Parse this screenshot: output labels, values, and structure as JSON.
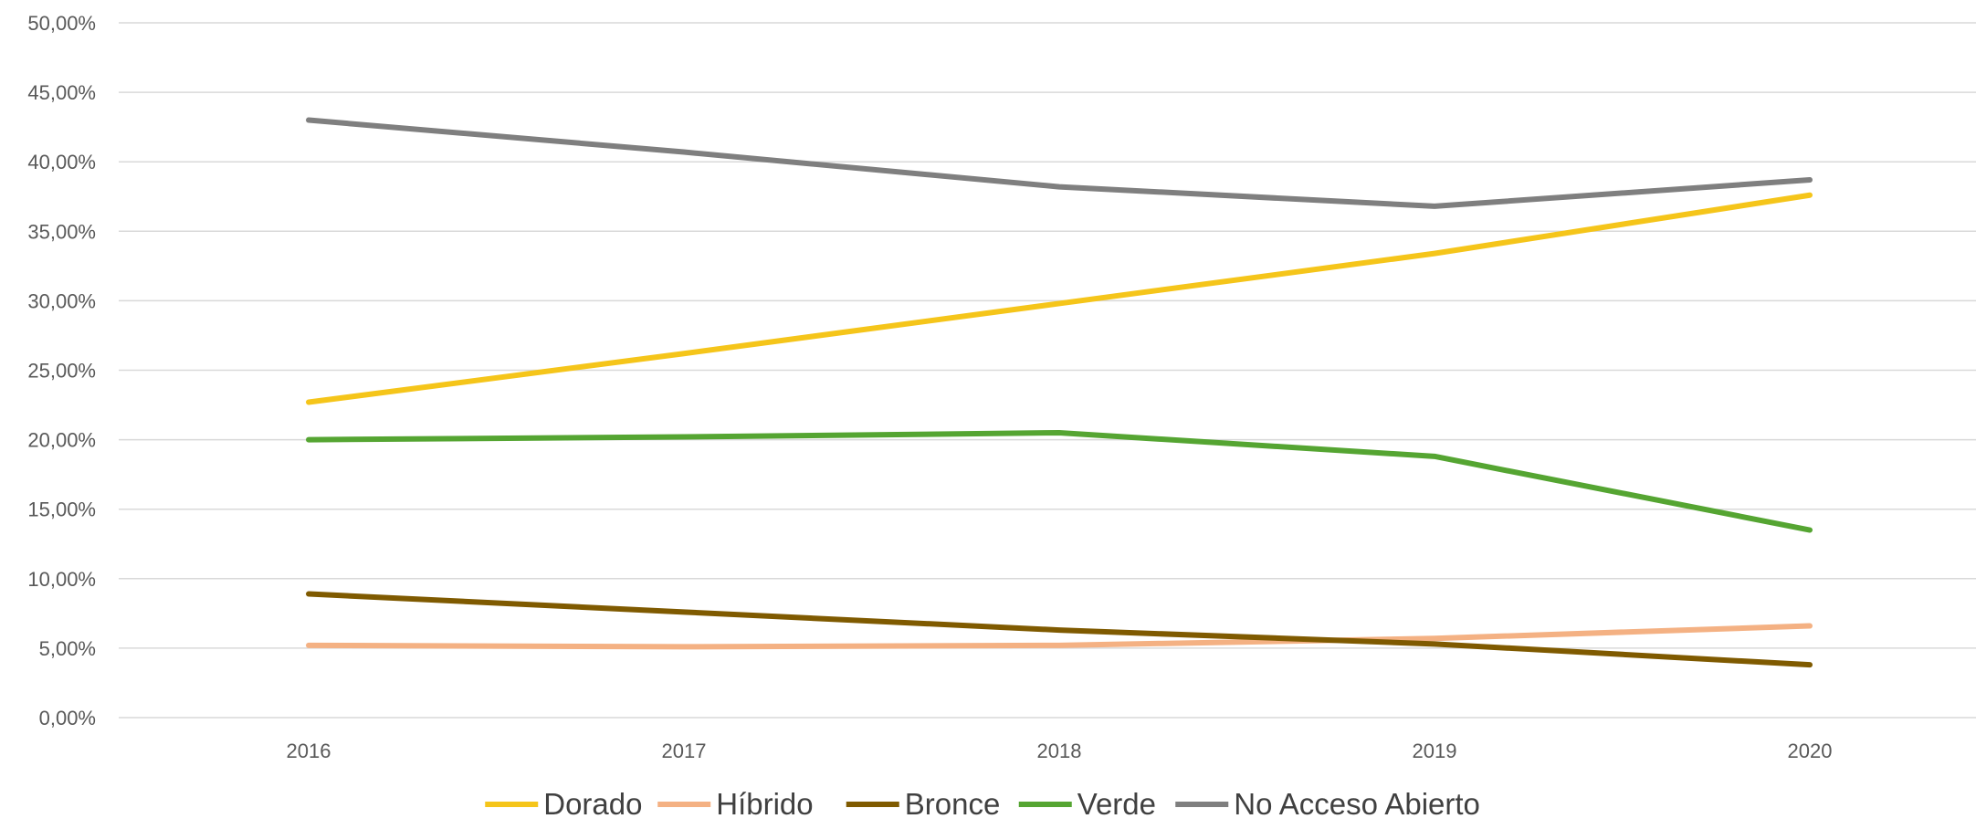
{
  "chart_data": {
    "type": "line",
    "title": "",
    "xlabel": "",
    "ylabel": "",
    "categories": [
      "2016",
      "2017",
      "2018",
      "2019",
      "2020"
    ],
    "ylim": [
      0,
      0.5
    ],
    "yticks": [
      0,
      0.05,
      0.1,
      0.15,
      0.2,
      0.25,
      0.3,
      0.35,
      0.4,
      0.45,
      0.5
    ],
    "ytick_labels": [
      "0,00%",
      "5,00%",
      "10,00%",
      "15,00%",
      "20,00%",
      "25,00%",
      "30,00%",
      "35,00%",
      "40,00%",
      "45,00%",
      "50,00%"
    ],
    "grid": true,
    "legend_position": "bottom",
    "series": [
      {
        "name": "Dorado",
        "color": "#f5c51a",
        "values": [
          0.227,
          0.262,
          0.298,
          0.334,
          0.376
        ]
      },
      {
        "name": "Híbrido",
        "color": "#f4b183",
        "values": [
          0.052,
          0.051,
          0.052,
          0.057,
          0.066
        ]
      },
      {
        "name": "Bronce",
        "color": "#7f5a00",
        "values": [
          0.089,
          0.076,
          0.063,
          0.053,
          0.038
        ]
      },
      {
        "name": "Verde",
        "color": "#55a532",
        "values": [
          0.2,
          0.202,
          0.205,
          0.188,
          0.135
        ]
      },
      {
        "name": "No Acceso Abierto",
        "color": "#7f7f7f",
        "values": [
          0.43,
          0.407,
          0.382,
          0.368,
          0.387
        ]
      }
    ]
  }
}
